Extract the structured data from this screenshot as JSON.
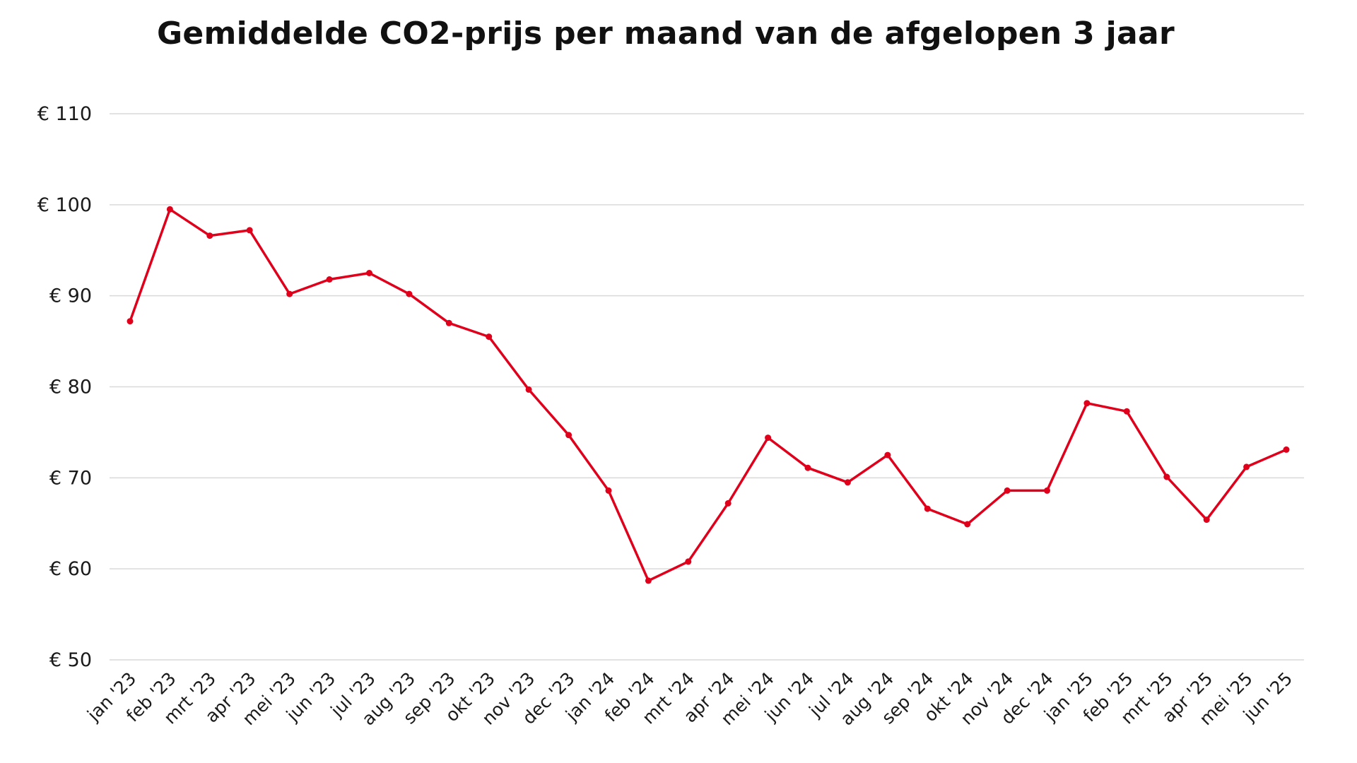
{
  "chart_data": {
    "type": "line",
    "title": "Gemiddelde CO2-prijs per maand van de afgelopen 3 jaar",
    "xlabel": "",
    "ylabel": "",
    "ylim": [
      50,
      110
    ],
    "ytick_values": [
      50,
      60,
      70,
      80,
      90,
      100,
      110
    ],
    "ytick_labels": [
      "€ 50",
      "€ 60",
      "€ 70",
      "€ 80",
      "€ 90",
      "€ 100",
      "€ 110"
    ],
    "grid": true,
    "legend": "none",
    "categories": [
      "jan '23",
      "feb '23",
      "mrt '23",
      "apr '23",
      "mei '23",
      "jun '23",
      "jul '23",
      "aug '23",
      "sep '23",
      "okt '23",
      "nov '23",
      "dec '23",
      "jan '24",
      "feb '24",
      "mrt '24",
      "apr '24",
      "mei '24",
      "jun '24",
      "jul '24",
      "aug '24",
      "sep '24",
      "okt '24",
      "nov '24",
      "dec '24",
      "jan '25",
      "feb '25",
      "mrt '25",
      "apr '25",
      "mei '25",
      "jun '25"
    ],
    "series": [
      {
        "name": "CO2-prijs",
        "color": "#e0001b",
        "values": [
          87.2,
          99.5,
          96.6,
          97.2,
          90.2,
          91.8,
          92.5,
          90.2,
          87.0,
          85.5,
          79.7,
          74.7,
          68.6,
          58.7,
          60.8,
          67.2,
          74.4,
          71.1,
          69.5,
          72.5,
          66.6,
          64.9,
          68.6,
          68.6,
          78.2,
          77.3,
          70.1,
          65.4,
          71.2,
          73.1
        ]
      }
    ]
  }
}
